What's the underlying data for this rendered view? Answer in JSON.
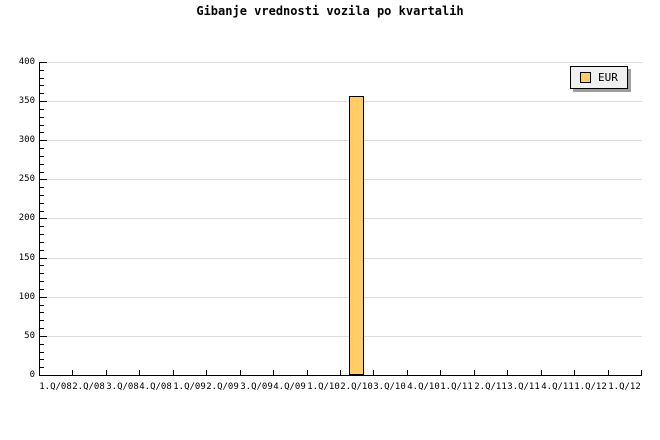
{
  "title": "Gibanje vrednosti vozila po kvartalih",
  "legend": {
    "items": [
      {
        "label": "EUR",
        "swatch_color": "#FFCC66"
      }
    ]
  },
  "chart_data": {
    "type": "bar",
    "title": "Gibanje vrednosti vozila po kvartalih",
    "categories": [
      "1.Q/08",
      "2.Q/08",
      "3.Q/08",
      "4.Q/08",
      "1.Q/09",
      "2.Q/09",
      "3.Q/09",
      "4.Q/09",
      "1.Q/10",
      "2.Q/10",
      "3.Q/10",
      "4.Q/10",
      "1.Q/11",
      "2.Q/11",
      "3.Q/11",
      "4.Q/11",
      "1.Q/12",
      "1.Q/12"
    ],
    "series": [
      {
        "name": "EUR",
        "values": [
          null,
          null,
          null,
          null,
          null,
          null,
          null,
          null,
          null,
          356,
          null,
          null,
          null,
          null,
          null,
          null,
          null,
          null
        ]
      }
    ],
    "xlabel": "",
    "ylabel": "",
    "ylim": [
      0,
      400
    ],
    "y_major_step": 50,
    "y_minor_step": 10,
    "y_tick_labels": [
      "0",
      "50",
      "100",
      "150",
      "200",
      "250",
      "300",
      "350",
      "400"
    ],
    "grid": "horizontal-major-only",
    "grid_color": "#DDDDDD",
    "axis_color": "#000000",
    "bar_color": "#FFCC66",
    "bar_border_color": "#000000",
    "legend_position": "top-right"
  }
}
